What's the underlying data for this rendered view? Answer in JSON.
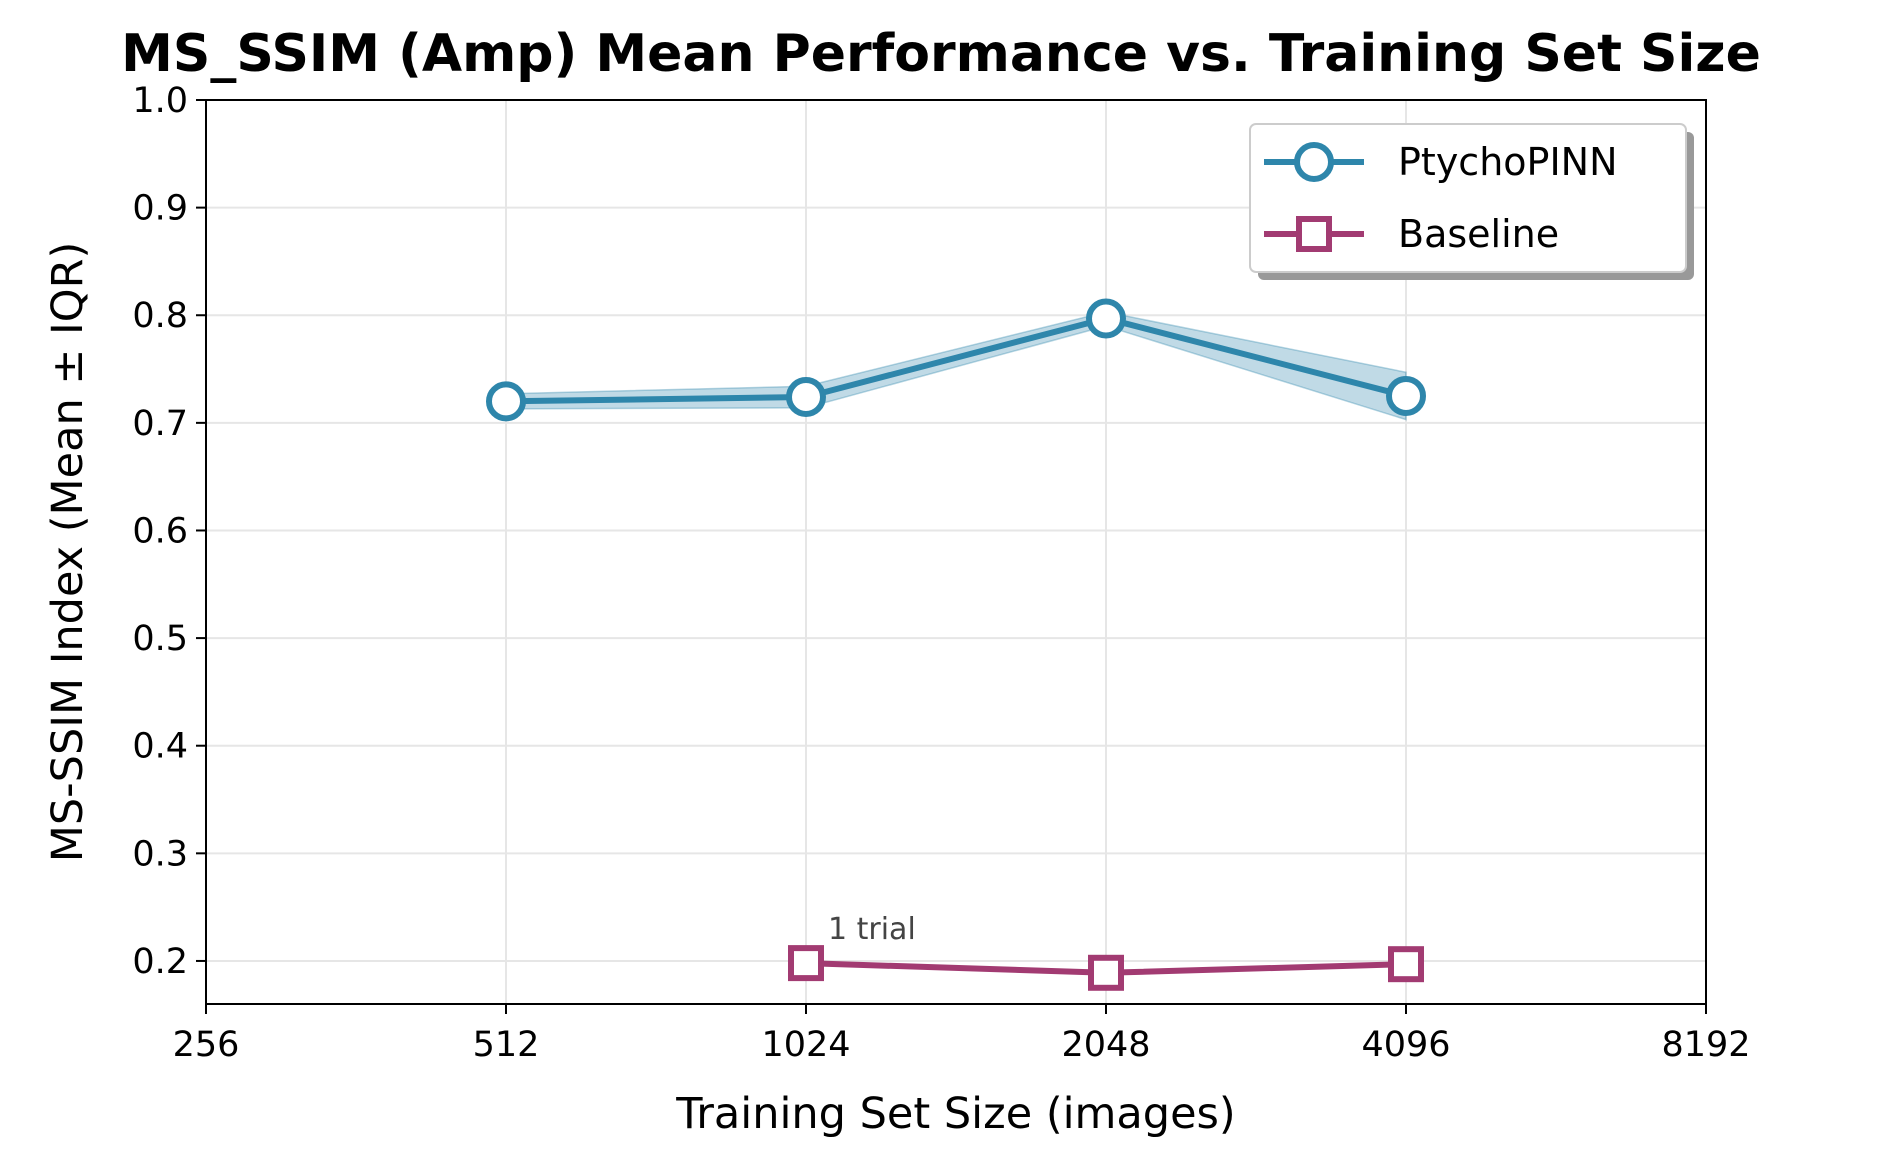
{
  "chart_data": {
    "type": "line",
    "title": "MS_SSIM (Amp) Mean Performance vs. Training Set Size",
    "xlabel": "Training Set Size (images)",
    "ylabel": "MS-SSIM Index (Mean ± IQR)",
    "xscale": "log2",
    "xlim": [
      256,
      8192
    ],
    "ylim": [
      0.16,
      1.0
    ],
    "x_ticks": [
      256,
      512,
      1024,
      2048,
      4096,
      8192
    ],
    "x_tick_labels": [
      "256",
      "512",
      "1024",
      "2048",
      "4096",
      "8192"
    ],
    "y_ticks": [
      0.2,
      0.3,
      0.4,
      0.5,
      0.6,
      0.7,
      0.8,
      0.9,
      1.0
    ],
    "y_tick_labels": [
      "0.2",
      "0.3",
      "0.4",
      "0.5",
      "0.6",
      "0.7",
      "0.8",
      "0.9",
      "1.0"
    ],
    "grid": true,
    "legend_position": "top-right",
    "series": [
      {
        "name": "PtychoPINN",
        "color": "#2e86ab",
        "marker": "circle",
        "x": [
          512,
          1024,
          2048,
          4096
        ],
        "y": [
          0.72,
          0.724,
          0.797,
          0.725
        ],
        "iqr_low": [
          0.713,
          0.714,
          0.79,
          0.703
        ],
        "iqr_high": [
          0.727,
          0.734,
          0.803,
          0.747
        ]
      },
      {
        "name": "Baseline",
        "color": "#a23b72",
        "marker": "square",
        "x": [
          1024,
          2048,
          4096
        ],
        "y": [
          0.198,
          0.189,
          0.197
        ]
      }
    ],
    "annotations": [
      {
        "text": "1 trial",
        "x": 1024,
        "y": 0.198
      }
    ]
  }
}
